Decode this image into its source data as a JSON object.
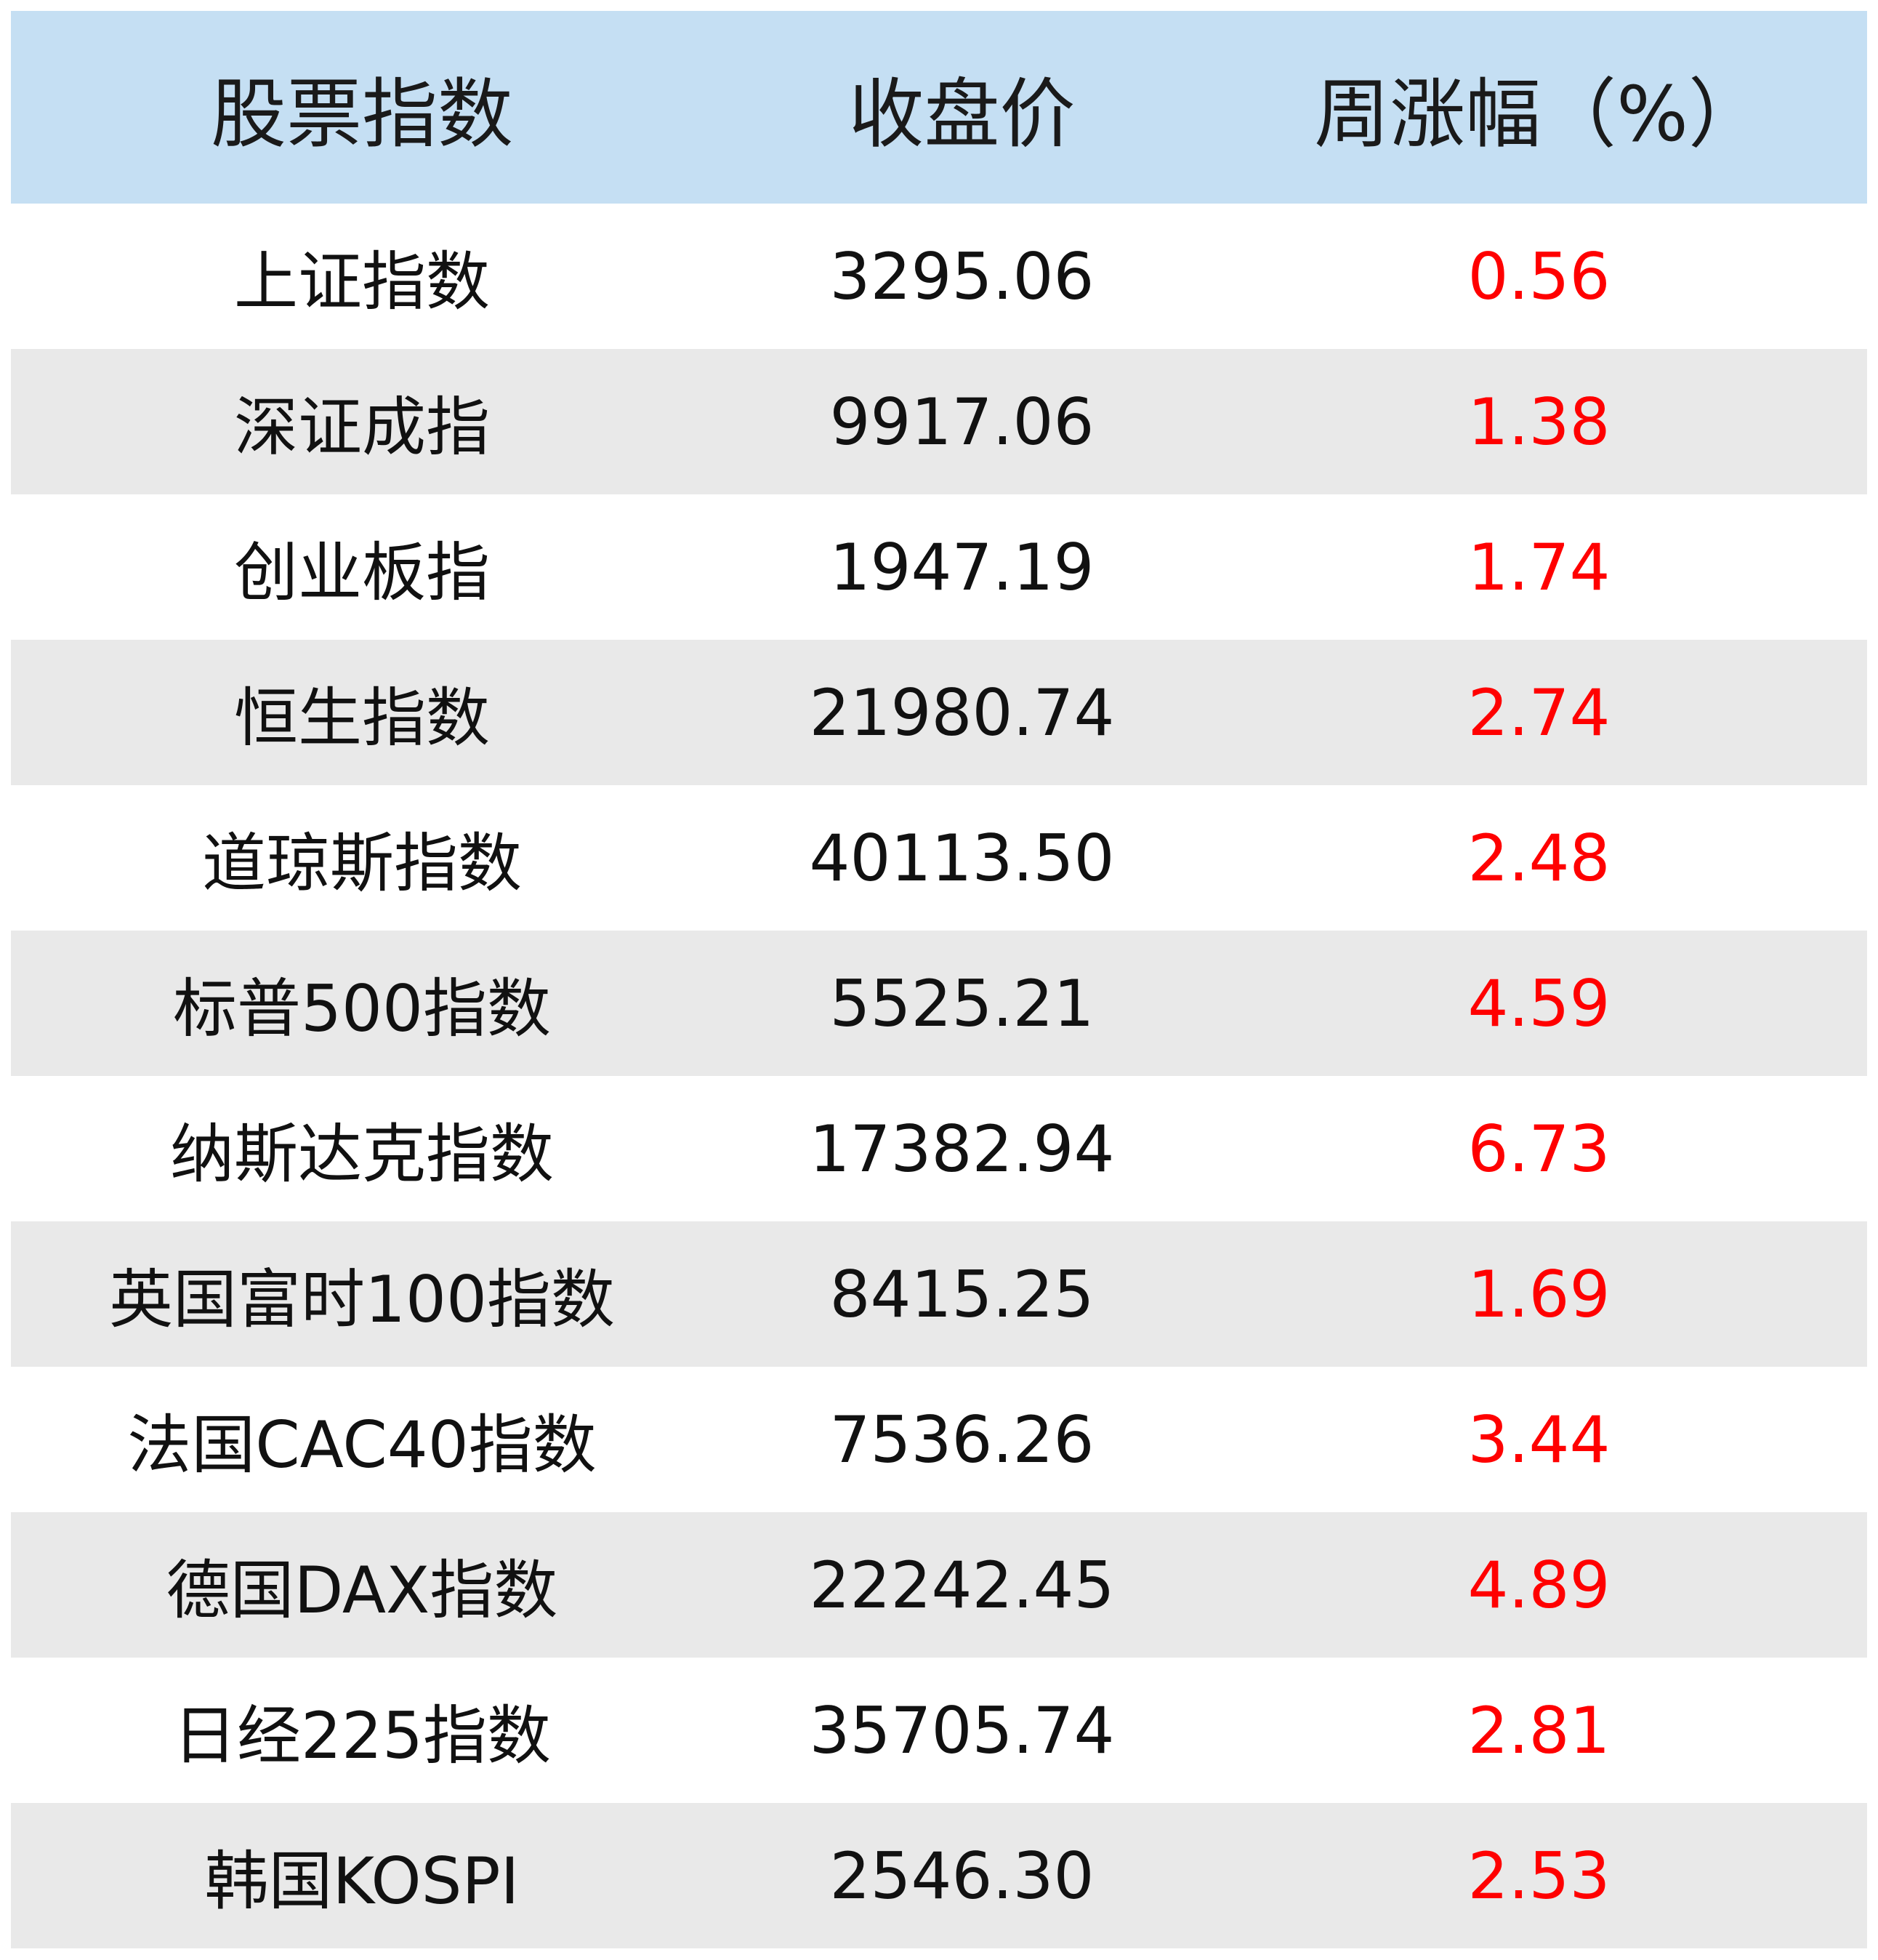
{
  "table": {
    "headers": [
      "股票指数",
      "收盘价",
      "周涨幅（%）"
    ],
    "rows": [
      {
        "index": "上证指数",
        "close": "3295.06",
        "change": "0.56"
      },
      {
        "index": "深证成指",
        "close": "9917.06",
        "change": "1.38"
      },
      {
        "index": "创业板指",
        "close": "1947.19",
        "change": "1.74"
      },
      {
        "index": "恒生指数",
        "close": "21980.74",
        "change": "2.74"
      },
      {
        "index": "道琼斯指数",
        "close": "40113.50",
        "change": "2.48"
      },
      {
        "index": "标普500指数",
        "close": "5525.21",
        "change": "4.59"
      },
      {
        "index": "纳斯达克指数",
        "close": "17382.94",
        "change": "6.73"
      },
      {
        "index": "英国富时100指数",
        "close": "8415.25",
        "change": "1.69"
      },
      {
        "index": "法国CAC40指数",
        "close": "7536.26",
        "change": "3.44"
      },
      {
        "index": "德国DAX指数",
        "close": "22242.45",
        "change": "4.89"
      },
      {
        "index": "日经225指数",
        "close": "35705.74",
        "change": "2.81"
      },
      {
        "index": "韩国KOSPI",
        "close": "2546.30",
        "change": "2.53"
      }
    ]
  },
  "colors": {
    "header_bg": "#c5dff3",
    "alt_row_bg": "#e9e9e9",
    "change_text": "#ff0000"
  }
}
